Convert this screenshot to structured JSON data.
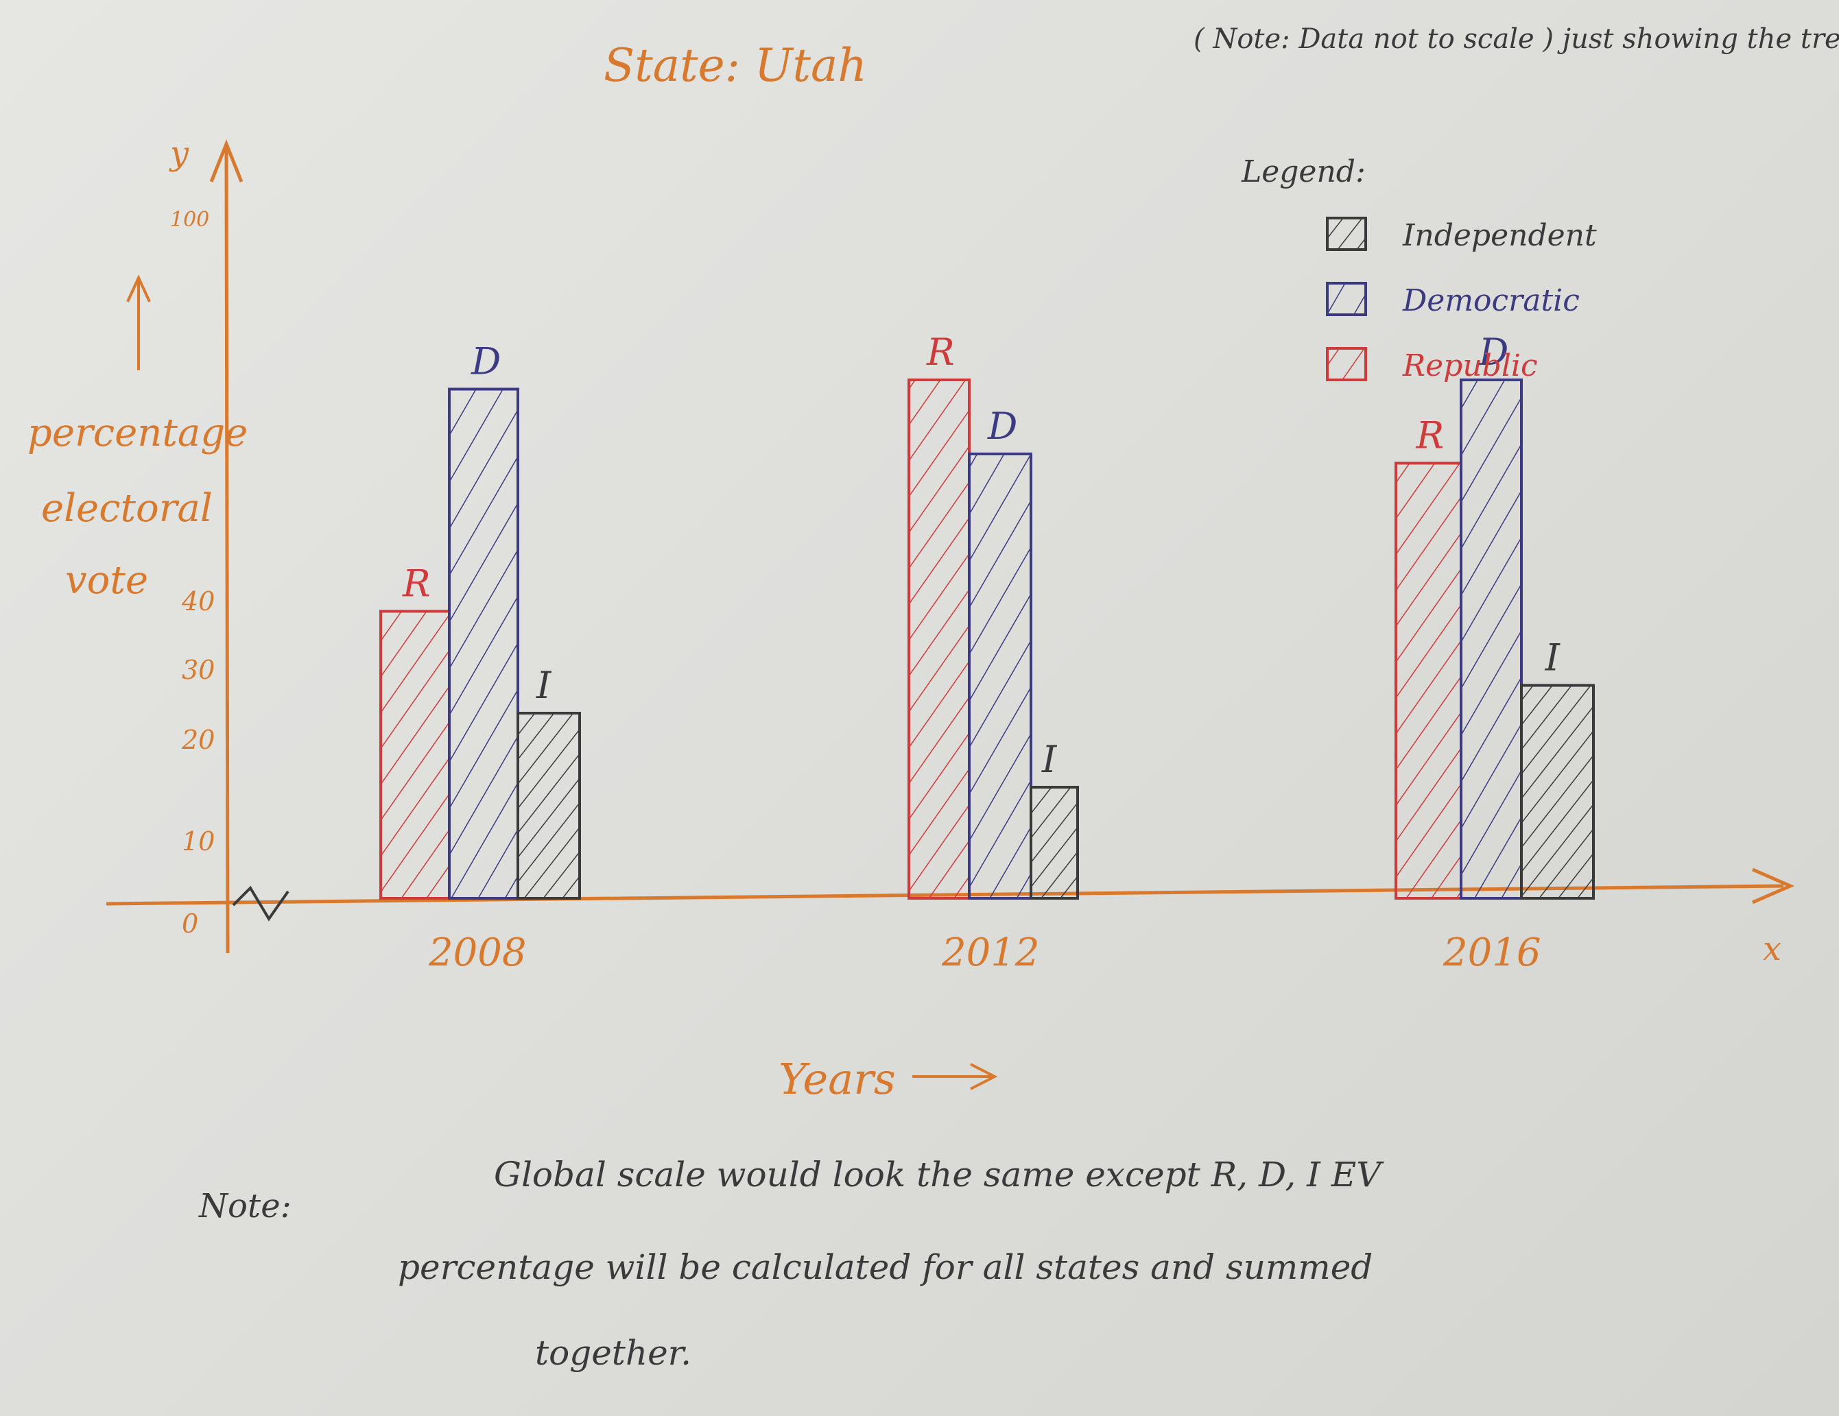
{
  "colors": {
    "axis": "#d9792e",
    "republican": "#cf3b3b",
    "democratic": "#3b3a82",
    "independent": "#3a3a3a",
    "ink": "#3a3a3a",
    "paper": "#e3e3e0"
  },
  "chart_data": {
    "type": "bar",
    "title": "State: Utah",
    "note_top": "( Note: Data not to scale ) just showing the trend",
    "ylabel": "percentage electoral vote",
    "xlabel": "Years",
    "x_axis_letter": "x",
    "y_axis_letter": "y",
    "y_ticks": [
      "0",
      "10",
      "20",
      "30",
      "40",
      "100"
    ],
    "ylim": [
      0,
      100
    ],
    "legend": {
      "title": "Legend:",
      "placement": "top-right",
      "items": [
        {
          "label": "Independent",
          "color": "#3a3a3a"
        },
        {
          "label": "Democratic",
          "color": "#3b3a82"
        },
        {
          "label": "Republic",
          "color": "#cf3b3b"
        }
      ]
    },
    "categories": [
      "2008",
      "2012",
      "2016"
    ],
    "series": [
      {
        "letter": "R",
        "color": "#cf3b3b",
        "values": [
          31,
          56,
          47
        ]
      },
      {
        "letter": "D",
        "color": "#3b3a82",
        "values": [
          55,
          48,
          56
        ]
      },
      {
        "letter": "I",
        "color": "#3a3a3a",
        "values": [
          20,
          12,
          23
        ]
      }
    ]
  },
  "bottom_note": {
    "label": "Note:",
    "lines": [
      "Global scale would look the same except R, D, I EV",
      "percentage will be calculated for all states and summed",
      "together."
    ]
  }
}
